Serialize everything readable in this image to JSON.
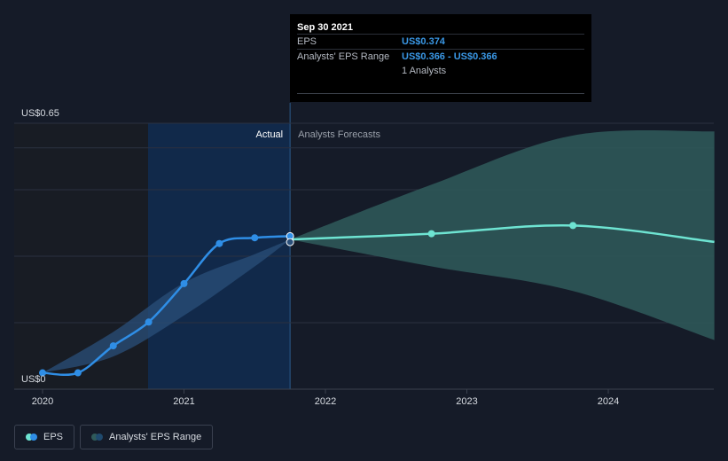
{
  "tooltip": {
    "date": "Sep 30 2021",
    "eps_label": "EPS",
    "eps_value": "US$0.374",
    "range_label": "Analysts' EPS Range",
    "range_value": "US$0.366 - US$0.366",
    "analysts": "1 Analysts"
  },
  "region_labels": {
    "actual": "Actual",
    "forecast": "Analysts Forecasts"
  },
  "legend": {
    "eps": "EPS",
    "range": "Analysts' EPS Range"
  },
  "colors": {
    "eps_actual": "#2f8ee6",
    "eps_forecast": "#6ee4d2",
    "range_fill": "#2f5a5a",
    "background": "#151b28",
    "highlight": "#11294a"
  },
  "chart_data": {
    "type": "line",
    "ylim": [
      0,
      0.65
    ],
    "y_tick_labels": [
      "US$0",
      "US$0.65"
    ],
    "x_tick_labels": [
      "2020",
      "2021",
      "2022",
      "2023",
      "2024"
    ],
    "series": [
      {
        "name": "EPS",
        "points": [
          [
            "2020-01-01",
            0.04
          ],
          [
            "2020-04-01",
            0.04
          ],
          [
            "2020-07-01",
            0.106
          ],
          [
            "2020-10-01",
            0.164
          ],
          [
            "2021-01-01",
            0.258
          ],
          [
            "2021-04-01",
            0.356
          ],
          [
            "2021-07-01",
            0.37
          ],
          [
            "2021-10-01",
            0.374
          ]
        ]
      },
      {
        "name": "Analysts' EPS Range",
        "forecast_points": [
          [
            "2021-10-01",
            0.366
          ],
          [
            "2022-10-01",
            0.38
          ],
          [
            "2023-10-01",
            0.4
          ],
          [
            "2024-10-01",
            0.36
          ]
        ],
        "band_high": [
          [
            "2021-10-01",
            0.366
          ],
          [
            "2022-10-01",
            0.5
          ],
          [
            "2023-10-01",
            0.62
          ],
          [
            "2024-10-01",
            0.63
          ]
        ],
        "band_low": [
          [
            "2021-10-01",
            0.366
          ],
          [
            "2022-10-01",
            0.3
          ],
          [
            "2023-10-01",
            0.24
          ],
          [
            "2024-10-01",
            0.12
          ]
        ],
        "historical_band_high": [
          [
            "2020-01-01",
            0.04
          ],
          [
            "2020-07-01",
            0.14
          ],
          [
            "2021-01-01",
            0.26
          ],
          [
            "2021-07-01",
            0.33
          ],
          [
            "2021-10-01",
            0.366
          ]
        ],
        "historical_band_low": [
          [
            "2020-01-01",
            0.04
          ],
          [
            "2020-07-01",
            0.08
          ],
          [
            "2021-01-01",
            0.18
          ],
          [
            "2021-07-01",
            0.3
          ],
          [
            "2021-10-01",
            0.366
          ]
        ]
      }
    ],
    "grid": true,
    "legend_position": "bottom-left"
  }
}
